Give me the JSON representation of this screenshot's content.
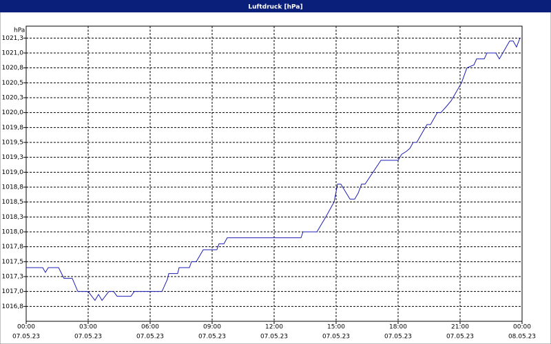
{
  "chart_data": {
    "type": "line",
    "title": "Luftdruck [hPa]",
    "y_label": "hPa",
    "xlim": [
      0,
      24
    ],
    "xticks": [
      {
        "value": 0,
        "label": "00:00",
        "date": "07.05.23"
      },
      {
        "value": 3,
        "label": "03:00",
        "date": "07.05.23"
      },
      {
        "value": 6,
        "label": "06:00",
        "date": "07.05.23"
      },
      {
        "value": 9,
        "label": "09:00",
        "date": "07.05.23"
      },
      {
        "value": 12,
        "label": "12:00",
        "date": "07.05.23"
      },
      {
        "value": 15,
        "label": "15:00",
        "date": "07.05.23"
      },
      {
        "value": 18,
        "label": "18:00",
        "date": "07.05.23"
      },
      {
        "value": 21,
        "label": "21:00",
        "date": "07.05.23"
      },
      {
        "value": 24,
        "label": "00:00",
        "date": "08.05.23"
      }
    ],
    "ylim": [
      1016.5,
      1021.45
    ],
    "yticks": [
      {
        "value": 1016.75,
        "label": "1016,8"
      },
      {
        "value": 1017.0,
        "label": "1017,0"
      },
      {
        "value": 1017.25,
        "label": "1017,3"
      },
      {
        "value": 1017.5,
        "label": "1017,5"
      },
      {
        "value": 1017.75,
        "label": "1017,8"
      },
      {
        "value": 1018.0,
        "label": "1018,0"
      },
      {
        "value": 1018.25,
        "label": "1018,3"
      },
      {
        "value": 1018.5,
        "label": "1018,5"
      },
      {
        "value": 1018.75,
        "label": "1018,8"
      },
      {
        "value": 1019.0,
        "label": "1019,0"
      },
      {
        "value": 1019.25,
        "label": "1019,3"
      },
      {
        "value": 1019.5,
        "label": "1019,5"
      },
      {
        "value": 1019.75,
        "label": "1019,8"
      },
      {
        "value": 1020.0,
        "label": "1020,0"
      },
      {
        "value": 1020.25,
        "label": "1020,3"
      },
      {
        "value": 1020.5,
        "label": "1020,5"
      },
      {
        "value": 1020.75,
        "label": "1020,8"
      },
      {
        "value": 1021.0,
        "label": "1021,0"
      },
      {
        "value": 1021.25,
        "label": "1021,3"
      }
    ],
    "grid": true,
    "series": [
      {
        "color": "#1c1cb4",
        "x": [
          0,
          0.8,
          0.93,
          1.07,
          1.57,
          1.83,
          2.23,
          2.5,
          3,
          3.33,
          3.5,
          3.67,
          4,
          4.23,
          4.4,
          5.07,
          5.23,
          6.57,
          6.83,
          6.9,
          7.33,
          7.4,
          7.9,
          8,
          8.23,
          8.57,
          9.23,
          9.33,
          9.57,
          9.73,
          13.3,
          13.4,
          14.07,
          14.5,
          14.9,
          15.07,
          15.23,
          15.67,
          15.9,
          16.07,
          16.23,
          16.4,
          17.17,
          18,
          18.17,
          18.4,
          18.57,
          18.73,
          18.9,
          19.4,
          19.57,
          19.9,
          20.07,
          20.33,
          20.57,
          21.07,
          21.33,
          21.67,
          21.8,
          22.17,
          22.3,
          22.73,
          22.9,
          23.23,
          23.4,
          23.57,
          23.73,
          23.9
        ],
        "values": [
          1017.4,
          1017.4,
          1017.32,
          1017.4,
          1017.4,
          1017.22,
          1017.22,
          1017.0,
          1017.0,
          1016.85,
          1016.95,
          1016.85,
          1017.0,
          1017.0,
          1016.92,
          1016.92,
          1017.0,
          1017.0,
          1017.2,
          1017.3,
          1017.3,
          1017.4,
          1017.4,
          1017.5,
          1017.5,
          1017.7,
          1017.7,
          1017.8,
          1017.8,
          1017.9,
          1017.9,
          1018.0,
          1018.0,
          1018.25,
          1018.5,
          1018.8,
          1018.8,
          1018.55,
          1018.55,
          1018.65,
          1018.8,
          1018.8,
          1019.2,
          1019.2,
          1019.3,
          1019.35,
          1019.4,
          1019.5,
          1019.5,
          1019.8,
          1019.8,
          1020.0,
          1020.0,
          1020.1,
          1020.2,
          1020.5,
          1020.75,
          1020.8,
          1020.9,
          1020.9,
          1021.0,
          1021.0,
          1020.9,
          1021.1,
          1021.2,
          1021.2,
          1021.1,
          1021.25
        ]
      }
    ]
  }
}
